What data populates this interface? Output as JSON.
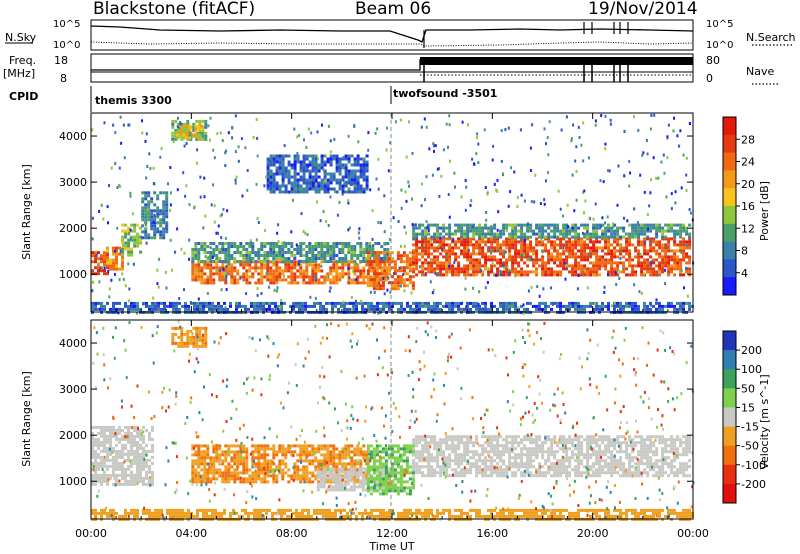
{
  "header": {
    "title": "Blackstone (fitACF)",
    "beam": "Beam 06",
    "date": "19/Nov/2014"
  },
  "top_panels": {
    "nsky_label": "N.Sky",
    "nsky_ticks": [
      "10^5",
      "10^0"
    ],
    "nsearch_label": "N.Search",
    "nsearch_ticks": [
      "10^5",
      "10^0"
    ],
    "freq_label": "Freq.",
    "freq_unit": "[MHz]",
    "freq_ticks": [
      "18",
      "8"
    ],
    "nave_label": "Nave",
    "nave_ticks": [
      "80",
      "0"
    ],
    "cpid_label": "CPID",
    "cpid_segments": [
      "themis 3300",
      "twofsound -3501"
    ]
  },
  "chart_data": [
    {
      "type": "heatmap",
      "name": "power",
      "ylabel": "Slant Range [km]",
      "xlabel": "",
      "x_ticks": [
        "00:00",
        "04:00",
        "08:00",
        "12:00",
        "16:00",
        "20:00",
        "00:00"
      ],
      "x_range_hours": [
        0,
        24
      ],
      "y_ticks": [
        1000,
        2000,
        3000,
        4000
      ],
      "ylim": [
        180,
        4500
      ],
      "colorbar": {
        "label": "Power [dB]",
        "ticks": [
          4,
          8,
          12,
          16,
          20,
          24,
          28
        ],
        "range": [
          0,
          32
        ],
        "colors": [
          "#1a1aff",
          "#2d57c8",
          "#3c7fa8",
          "#4ba06a",
          "#8ec63f",
          "#f5c51c",
          "#f49a18",
          "#ef6a12",
          "#e53a10",
          "#e11a0a"
        ]
      },
      "bands": [
        {
          "t0": 0.0,
          "t1": 0.6,
          "r0": 1000,
          "r1": 1500,
          "level": 26
        },
        {
          "t0": 0.6,
          "t1": 1.2,
          "r0": 1100,
          "r1": 1600,
          "level": 22
        },
        {
          "t0": 1.2,
          "t1": 2.0,
          "r0": 1400,
          "r1": 2100,
          "level": 14
        },
        {
          "t0": 2.0,
          "t1": 3.0,
          "r0": 1800,
          "r1": 2800,
          "level": 8
        },
        {
          "t0": 3.2,
          "t1": 4.6,
          "r0": 3900,
          "r1": 4350,
          "level": 12
        },
        {
          "t0": 3.4,
          "t1": 4.4,
          "r0": 3950,
          "r1": 4250,
          "level": 18
        },
        {
          "t0": 4.0,
          "t1": 11.8,
          "r0": 800,
          "r1": 1300,
          "level": 24
        },
        {
          "t0": 4.0,
          "t1": 11.8,
          "r0": 1300,
          "r1": 1700,
          "level": 10
        },
        {
          "t0": 7.0,
          "t1": 11.0,
          "r0": 2800,
          "r1": 3600,
          "level": 6
        },
        {
          "t0": 11.0,
          "t1": 12.8,
          "r0": 700,
          "r1": 1500,
          "level": 24
        },
        {
          "t0": 12.8,
          "t1": 23.9,
          "r0": 1000,
          "r1": 1800,
          "level": 26
        },
        {
          "t0": 12.8,
          "t1": 23.9,
          "r0": 1800,
          "r1": 2100,
          "level": 10
        },
        {
          "t0": 0.0,
          "t1": 24.0,
          "r0": 200,
          "r1": 400,
          "level": 6
        }
      ]
    },
    {
      "type": "heatmap",
      "name": "velocity",
      "ylabel": "Slant Range [km]",
      "xlabel": "Time UT",
      "x_ticks": [
        "00:00",
        "04:00",
        "08:00",
        "12:00",
        "16:00",
        "20:00",
        "00:00"
      ],
      "x_range_hours": [
        0,
        24
      ],
      "y_ticks": [
        1000,
        2000,
        3000,
        4000
      ],
      "ylim": [
        180,
        4500
      ],
      "colorbar": {
        "label": "Velocity [m s^-1]",
        "ticks": [
          200,
          100,
          50,
          15,
          -15,
          -50,
          -100,
          -200
        ],
        "colors": [
          "#2233bb",
          "#2f7fb0",
          "#3aa25a",
          "#7fd04a",
          "#c8c8c4",
          "#f0a020",
          "#f07010",
          "#e83010",
          "#e01010"
        ]
      },
      "bands": [
        {
          "t0": 0.0,
          "t1": 2.5,
          "r0": 900,
          "r1": 2200,
          "level": 0
        },
        {
          "t0": 3.2,
          "t1": 4.6,
          "r0": 3900,
          "r1": 4350,
          "level": -40
        },
        {
          "t0": 4.0,
          "t1": 11.0,
          "r0": 1000,
          "r1": 1800,
          "level": -45
        },
        {
          "t0": 9.0,
          "t1": 12.0,
          "r0": 800,
          "r1": 1300,
          "level": 0
        },
        {
          "t0": 11.0,
          "t1": 12.8,
          "r0": 700,
          "r1": 1800,
          "level": 40
        },
        {
          "t0": 12.8,
          "t1": 23.9,
          "r0": 1100,
          "r1": 2000,
          "level": 0
        },
        {
          "t0": 0.0,
          "t1": 24.0,
          "r0": 200,
          "r1": 400,
          "level": -30
        }
      ]
    }
  ]
}
